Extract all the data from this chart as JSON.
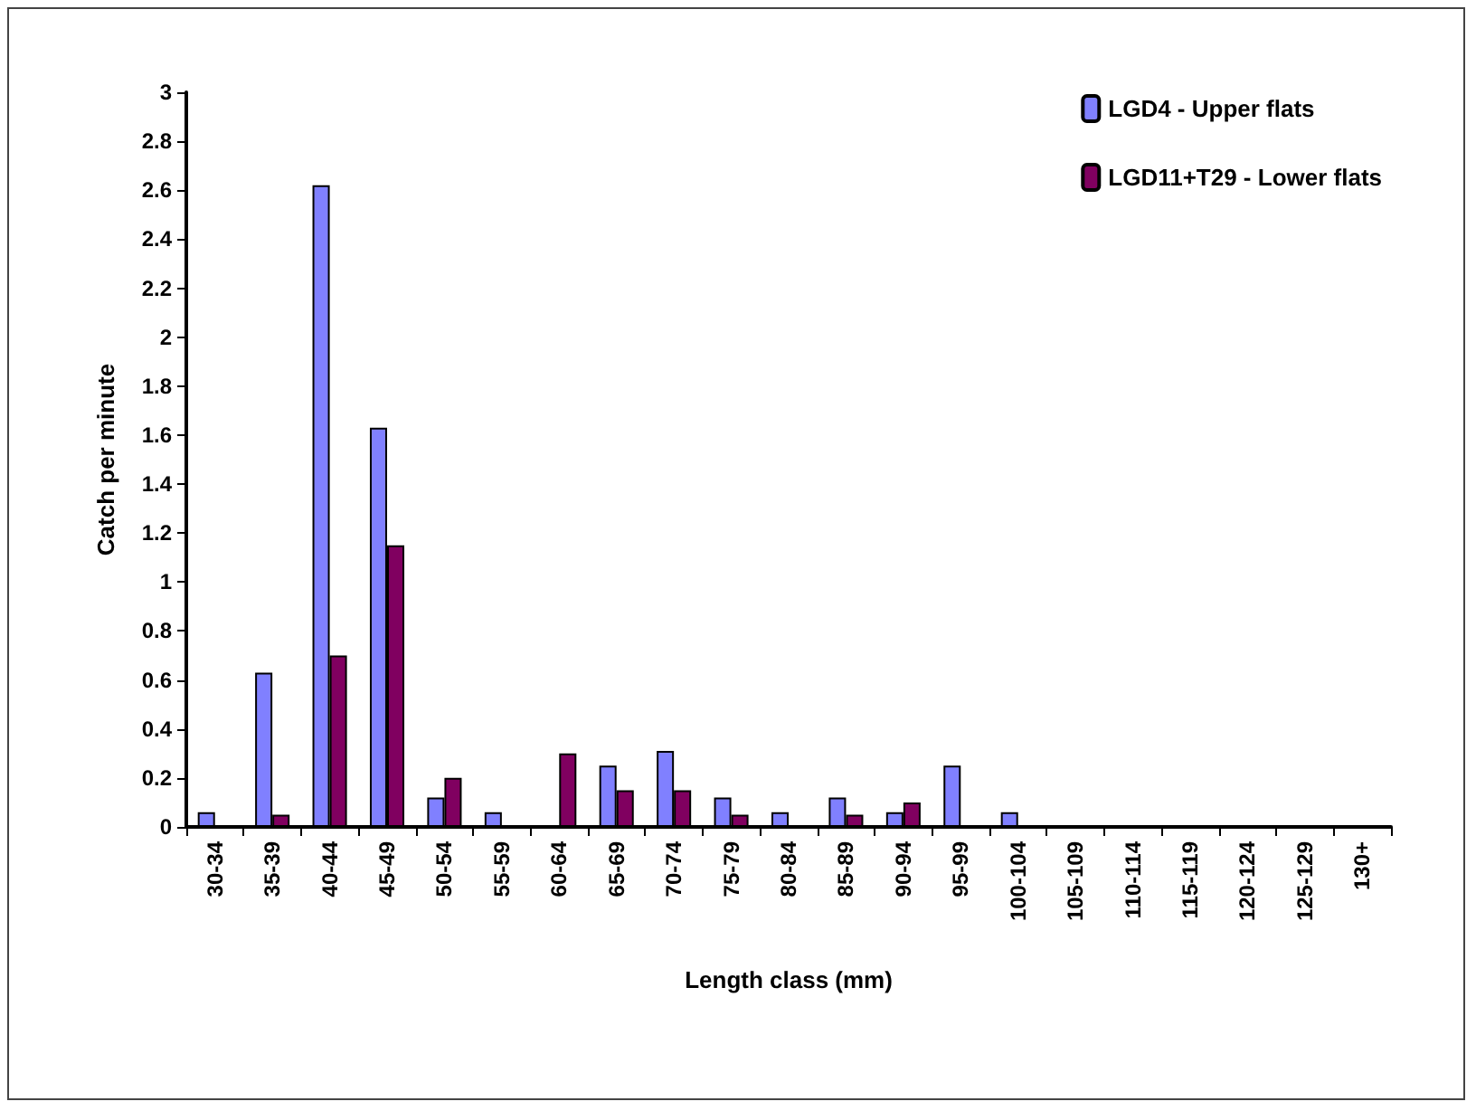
{
  "chart_data": {
    "type": "bar",
    "xlabel": "Length class (mm)",
    "ylabel": "Catch per minute",
    "categories": [
      "30-34",
      "35-39",
      "40-44",
      "45-49",
      "50-54",
      "55-59",
      "60-64",
      "65-69",
      "70-74",
      "75-79",
      "80-84",
      "85-89",
      "90-94",
      "95-99",
      "100-104",
      "105-109",
      "110-114",
      "115-119",
      "120-124",
      "125-129",
      "130+"
    ],
    "series": [
      {
        "name": "LGD4 - Upper flats",
        "color": "#8080ff",
        "values": [
          0.06,
          0.63,
          2.62,
          1.63,
          0.12,
          0.06,
          0,
          0.25,
          0.31,
          0.12,
          0.06,
          0.12,
          0.06,
          0.25,
          0.06,
          0,
          0,
          0,
          0,
          0,
          0
        ]
      },
      {
        "name": "LGD11+T29 - Lower flats",
        "color": "#800060",
        "values": [
          0,
          0.05,
          0.7,
          1.15,
          0.2,
          0,
          0.3,
          0.15,
          0.15,
          0.05,
          0,
          0.05,
          0.1,
          0,
          0,
          0,
          0,
          0,
          0,
          0,
          0
        ]
      }
    ],
    "ylim": [
      0,
      3
    ],
    "yticks": [
      0,
      0.2,
      0.4,
      0.6,
      0.8,
      1,
      1.2,
      1.4,
      1.6,
      1.8,
      2,
      2.2,
      2.4,
      2.6,
      2.8,
      3
    ],
    "grid": false,
    "legend": "top right"
  }
}
